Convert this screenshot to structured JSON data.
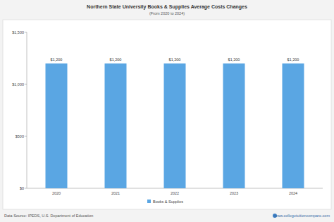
{
  "chart_data": {
    "type": "bar",
    "title": "Northern State University Books & Supplies Average Costs Changes",
    "subtitle": "(From 2020 to 2024)",
    "annotations": [
      "Data Source: IPEDS, U.S. Department of Education",
      "www.collegetuitioncompare.com"
    ],
    "categories": [
      "2020",
      "2021",
      "2022",
      "2023",
      "2024"
    ],
    "series": [
      {
        "name": "Books & Supplies",
        "color": "#5aa6e3",
        "values": [
          1200,
          1200,
          1200,
          1200,
          1200
        ],
        "value_labels": [
          "$1,200",
          "$1,200",
          "$1,200",
          "$1,200",
          "$1,200"
        ]
      }
    ],
    "ylim": [
      0,
      1500
    ],
    "yticks": [
      {
        "value": 0,
        "label": "$0"
      },
      {
        "value": 500,
        "label": "$500"
      },
      {
        "value": 1000,
        "label": "$1,000"
      },
      {
        "value": 1500,
        "label": "$1,500"
      }
    ],
    "grid": false,
    "data_labels": true,
    "legend": "bottom"
  }
}
